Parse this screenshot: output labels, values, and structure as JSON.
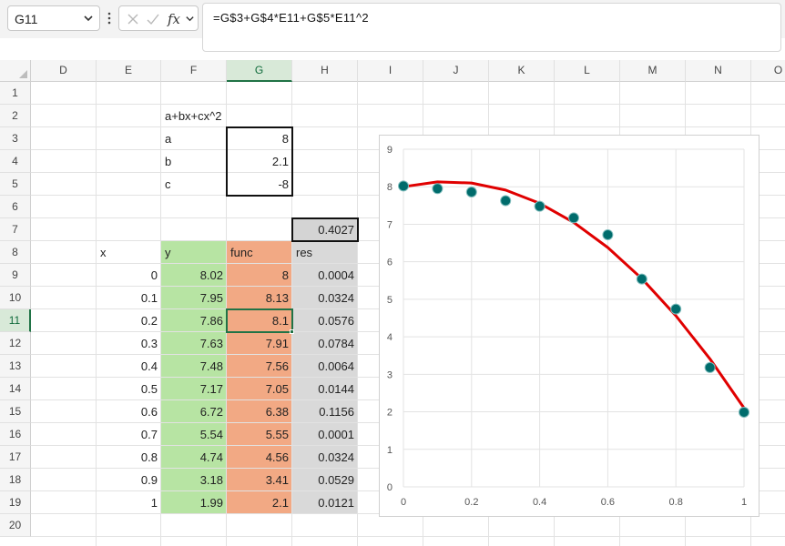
{
  "formula_bar": {
    "name_box": "G11",
    "fx_label": "fx",
    "formula": "=G$3+G$4*E11+G$5*E11^2"
  },
  "columns": [
    "D",
    "E",
    "F",
    "G",
    "H",
    "I",
    "J",
    "K",
    "L",
    "M",
    "N",
    "O"
  ],
  "active_column": "G",
  "rows": [
    "1",
    "2",
    "3",
    "4",
    "5",
    "6",
    "7",
    "8",
    "9",
    "10",
    "11",
    "12",
    "13",
    "14",
    "15",
    "16",
    "17",
    "18",
    "19",
    "20"
  ],
  "active_row": "11",
  "colors": {
    "y_fill": "#b7e4a3",
    "func_fill": "#f2a984",
    "res_fill": "#d9d9d9",
    "total_fill": "#d4d4d4",
    "selection": "#217346",
    "marker": "#006c6c",
    "curve": "#e00000"
  },
  "model": {
    "label": "a+bx+cx^2",
    "params": [
      {
        "name": "a",
        "value": "8"
      },
      {
        "name": "b",
        "value": "2.1"
      },
      {
        "name": "c",
        "value": "-8"
      }
    ],
    "total_res": "0.4027"
  },
  "table": {
    "headers": {
      "x": "x",
      "y": "y",
      "func": "func",
      "res": "res"
    },
    "rows": [
      {
        "x": "0",
        "y": "8.02",
        "func": "8",
        "res": "0.0004"
      },
      {
        "x": "0.1",
        "y": "7.95",
        "func": "8.13",
        "res": "0.0324"
      },
      {
        "x": "0.2",
        "y": "7.86",
        "func": "8.1",
        "res": "0.0576"
      },
      {
        "x": "0.3",
        "y": "7.63",
        "func": "7.91",
        "res": "0.0784"
      },
      {
        "x": "0.4",
        "y": "7.48",
        "func": "7.56",
        "res": "0.0064"
      },
      {
        "x": "0.5",
        "y": "7.17",
        "func": "7.05",
        "res": "0.0144"
      },
      {
        "x": "0.6",
        "y": "6.72",
        "func": "6.38",
        "res": "0.1156"
      },
      {
        "x": "0.7",
        "y": "5.54",
        "func": "5.55",
        "res": "0.0001"
      },
      {
        "x": "0.8",
        "y": "4.74",
        "func": "4.56",
        "res": "0.0324"
      },
      {
        "x": "0.9",
        "y": "3.18",
        "func": "3.41",
        "res": "0.0529"
      },
      {
        "x": "1",
        "y": "1.99",
        "func": "2.1",
        "res": "0.0121"
      }
    ]
  },
  "chart_data": {
    "type": "scatter",
    "x": [
      0,
      0.1,
      0.2,
      0.3,
      0.4,
      0.5,
      0.6,
      0.7,
      0.8,
      0.9,
      1
    ],
    "series": [
      {
        "style": "markers",
        "values": [
          8.02,
          7.95,
          7.86,
          7.63,
          7.48,
          7.17,
          6.72,
          5.54,
          4.74,
          3.18,
          1.99
        ]
      },
      {
        "style": "line",
        "values": [
          8,
          8.13,
          8.1,
          7.91,
          7.56,
          7.05,
          6.38,
          5.55,
          4.56,
          3.41,
          2.1
        ]
      }
    ],
    "xlim": [
      0,
      1
    ],
    "ylim": [
      0,
      9
    ],
    "x_ticks": [
      "0",
      "0.2",
      "0.4",
      "0.6",
      "0.8",
      "1"
    ],
    "y_ticks": [
      "0",
      "1",
      "2",
      "3",
      "4",
      "5",
      "6",
      "7",
      "8",
      "9"
    ],
    "grid": true,
    "legend": "none"
  }
}
